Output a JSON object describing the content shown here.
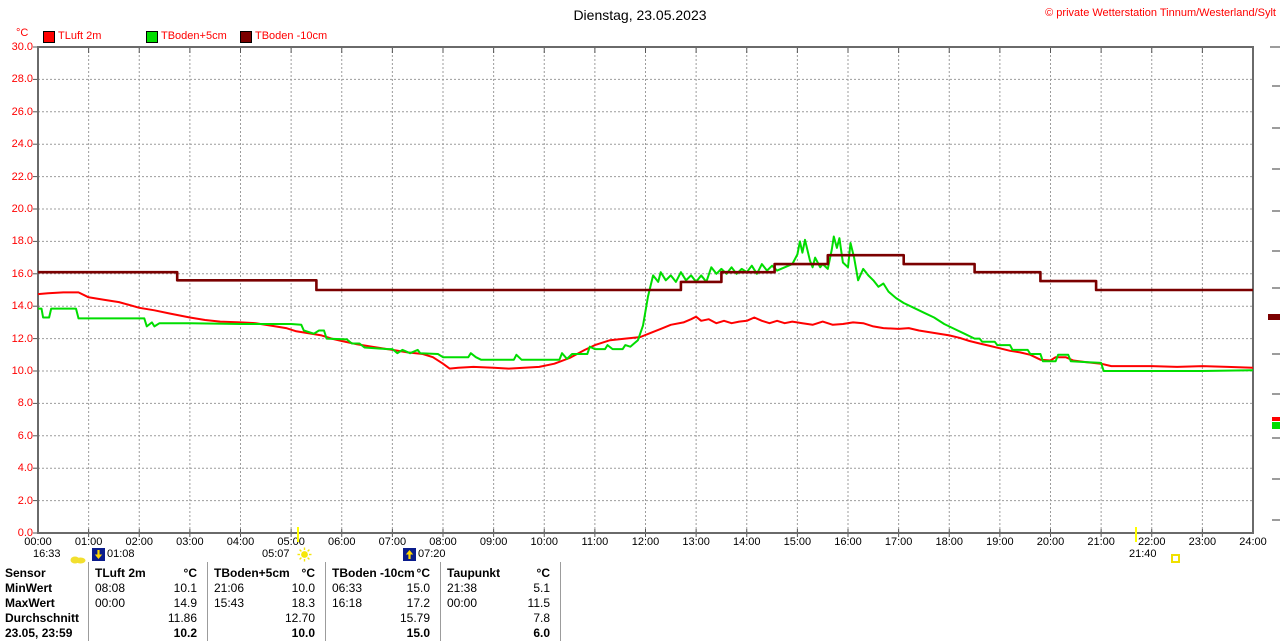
{
  "header": {
    "title": "Dienstag, 23.05.2023",
    "copyright": "© private Wetterstation Tinnum/Westerland/Sylt"
  },
  "chart_data": {
    "type": "line",
    "title": "Dienstag, 23.05.2023",
    "ylabel": "°C",
    "xlabel": "",
    "ylim": [
      0,
      30
    ],
    "ytick_step": 2,
    "grid": true,
    "legend_position": "top-left",
    "ytick_labels": [
      "0.0",
      "2.0",
      "4.0",
      "6.0",
      "8.0",
      "10.0",
      "12.0",
      "14.0",
      "16.0",
      "18.0",
      "20.0",
      "22.0",
      "24.0",
      "26.0",
      "28.0",
      "30.0"
    ],
    "xtick_labels": [
      "00:00",
      "01:00",
      "02:00",
      "03:00",
      "04:00",
      "05:00",
      "06:00",
      "07:00",
      "08:00",
      "09:00",
      "10:00",
      "11:00",
      "12:00",
      "13:00",
      "14:00",
      "15:00",
      "16:00",
      "17:00",
      "18:00",
      "19:00",
      "20:00",
      "21:00",
      "22:00",
      "23:00",
      "24:00"
    ],
    "series": [
      {
        "name": "TLuft 2m",
        "color": "#ff0000",
        "points": [
          [
            0,
            14.75
          ],
          [
            0.2,
            14.8
          ],
          [
            0.5,
            14.85
          ],
          [
            0.8,
            14.85
          ],
          [
            1.0,
            14.55
          ],
          [
            1.3,
            14.4
          ],
          [
            1.6,
            14.25
          ],
          [
            2.0,
            13.9
          ],
          [
            2.3,
            13.75
          ],
          [
            2.6,
            13.55
          ],
          [
            3.0,
            13.3
          ],
          [
            3.3,
            13.15
          ],
          [
            3.6,
            13.05
          ],
          [
            4.0,
            13.0
          ],
          [
            4.3,
            12.95
          ],
          [
            4.6,
            12.8
          ],
          [
            4.9,
            12.65
          ],
          [
            5.1,
            12.45
          ],
          [
            5.3,
            12.35
          ],
          [
            5.6,
            12.2
          ],
          [
            5.8,
            12.0
          ],
          [
            6.0,
            11.85
          ],
          [
            6.3,
            11.65
          ],
          [
            6.6,
            11.5
          ],
          [
            7.0,
            11.3
          ],
          [
            7.3,
            11.15
          ],
          [
            7.6,
            11.05
          ],
          [
            7.8,
            10.85
          ],
          [
            8.0,
            10.45
          ],
          [
            8.13,
            10.15
          ],
          [
            8.3,
            10.2
          ],
          [
            8.6,
            10.25
          ],
          [
            9.0,
            10.2
          ],
          [
            9.3,
            10.15
          ],
          [
            9.6,
            10.2
          ],
          [
            9.9,
            10.25
          ],
          [
            10.2,
            10.45
          ],
          [
            10.5,
            10.8
          ],
          [
            10.8,
            11.3
          ],
          [
            11.0,
            11.6
          ],
          [
            11.3,
            11.9
          ],
          [
            11.6,
            12.0
          ],
          [
            11.9,
            12.1
          ],
          [
            12.1,
            12.35
          ],
          [
            12.3,
            12.6
          ],
          [
            12.5,
            12.85
          ],
          [
            12.75,
            13.0
          ],
          [
            12.9,
            13.2
          ],
          [
            13.0,
            13.35
          ],
          [
            13.1,
            13.1
          ],
          [
            13.25,
            13.2
          ],
          [
            13.4,
            12.95
          ],
          [
            13.55,
            13.1
          ],
          [
            13.7,
            12.95
          ],
          [
            13.85,
            13.05
          ],
          [
            14.0,
            13.1
          ],
          [
            14.15,
            13.3
          ],
          [
            14.3,
            13.1
          ],
          [
            14.45,
            12.95
          ],
          [
            14.6,
            13.1
          ],
          [
            14.75,
            12.95
          ],
          [
            14.9,
            13.05
          ],
          [
            15.1,
            12.95
          ],
          [
            15.3,
            12.85
          ],
          [
            15.5,
            13.05
          ],
          [
            15.7,
            12.85
          ],
          [
            15.9,
            12.9
          ],
          [
            16.1,
            13.0
          ],
          [
            16.3,
            12.95
          ],
          [
            16.5,
            12.75
          ],
          [
            16.7,
            12.65
          ],
          [
            17.0,
            12.6
          ],
          [
            17.2,
            12.65
          ],
          [
            17.4,
            12.5
          ],
          [
            17.6,
            12.4
          ],
          [
            17.8,
            12.3
          ],
          [
            18.0,
            12.2
          ],
          [
            18.2,
            12.05
          ],
          [
            18.4,
            11.85
          ],
          [
            18.6,
            11.7
          ],
          [
            18.8,
            11.55
          ],
          [
            19.0,
            11.4
          ],
          [
            19.2,
            11.25
          ],
          [
            19.4,
            11.15
          ],
          [
            19.6,
            11.0
          ],
          [
            19.8,
            10.7
          ],
          [
            20.0,
            10.65
          ],
          [
            20.1,
            10.85
          ],
          [
            20.3,
            10.85
          ],
          [
            20.45,
            10.65
          ],
          [
            20.7,
            10.55
          ],
          [
            21.0,
            10.45
          ],
          [
            21.2,
            10.3
          ],
          [
            21.5,
            10.3
          ],
          [
            22.0,
            10.3
          ],
          [
            22.5,
            10.25
          ],
          [
            23.0,
            10.3
          ],
          [
            23.5,
            10.25
          ],
          [
            24,
            10.2
          ]
        ]
      },
      {
        "name": "TBoden+5cm",
        "color": "#00dd00",
        "points": [
          [
            0,
            13.85
          ],
          [
            0.07,
            13.85
          ],
          [
            0.1,
            13.3
          ],
          [
            0.22,
            13.3
          ],
          [
            0.26,
            13.85
          ],
          [
            0.75,
            13.85
          ],
          [
            0.8,
            13.25
          ],
          [
            2.1,
            13.25
          ],
          [
            2.15,
            12.75
          ],
          [
            2.25,
            13.0
          ],
          [
            2.3,
            12.75
          ],
          [
            2.4,
            12.95
          ],
          [
            3.0,
            12.95
          ],
          [
            4.0,
            12.9
          ],
          [
            5.0,
            12.9
          ],
          [
            5.2,
            12.85
          ],
          [
            5.25,
            12.5
          ],
          [
            5.45,
            12.3
          ],
          [
            5.55,
            12.5
          ],
          [
            5.65,
            12.5
          ],
          [
            5.7,
            12.0
          ],
          [
            6.1,
            11.95
          ],
          [
            6.2,
            11.7
          ],
          [
            6.35,
            11.7
          ],
          [
            6.45,
            11.45
          ],
          [
            6.9,
            11.35
          ],
          [
            7.0,
            11.35
          ],
          [
            7.1,
            11.1
          ],
          [
            7.2,
            11.3
          ],
          [
            7.35,
            11.1
          ],
          [
            7.5,
            11.3
          ],
          [
            7.55,
            11.1
          ],
          [
            7.9,
            11.05
          ],
          [
            8.0,
            10.85
          ],
          [
            8.5,
            10.85
          ],
          [
            8.55,
            11.1
          ],
          [
            8.65,
            10.85
          ],
          [
            8.75,
            10.7
          ],
          [
            9.4,
            10.7
          ],
          [
            9.45,
            11.0
          ],
          [
            9.55,
            10.7
          ],
          [
            10.3,
            10.7
          ],
          [
            10.35,
            11.1
          ],
          [
            10.45,
            10.75
          ],
          [
            10.55,
            11.05
          ],
          [
            10.85,
            11.05
          ],
          [
            10.9,
            11.5
          ],
          [
            11.0,
            11.35
          ],
          [
            11.2,
            11.35
          ],
          [
            11.25,
            11.6
          ],
          [
            11.35,
            11.35
          ],
          [
            11.55,
            11.35
          ],
          [
            11.6,
            11.6
          ],
          [
            11.7,
            11.5
          ],
          [
            11.85,
            11.9
          ],
          [
            11.95,
            12.8
          ],
          [
            12.05,
            14.6
          ],
          [
            12.15,
            15.9
          ],
          [
            12.25,
            15.5
          ],
          [
            12.3,
            16.1
          ],
          [
            12.4,
            15.6
          ],
          [
            12.5,
            15.9
          ],
          [
            12.6,
            15.5
          ],
          [
            12.7,
            16.1
          ],
          [
            12.8,
            15.6
          ],
          [
            12.9,
            15.9
          ],
          [
            13.0,
            15.5
          ],
          [
            13.1,
            15.9
          ],
          [
            13.2,
            15.5
          ],
          [
            13.3,
            16.4
          ],
          [
            13.4,
            16.0
          ],
          [
            13.5,
            16.3
          ],
          [
            13.6,
            16.0
          ],
          [
            13.7,
            16.4
          ],
          [
            13.8,
            16.0
          ],
          [
            13.9,
            16.3
          ],
          [
            14.0,
            16.1
          ],
          [
            14.1,
            16.5
          ],
          [
            14.2,
            16.0
          ],
          [
            14.3,
            16.6
          ],
          [
            14.4,
            16.2
          ],
          [
            14.5,
            16.5
          ],
          [
            14.6,
            16.2
          ],
          [
            14.75,
            16.4
          ],
          [
            14.9,
            16.6
          ],
          [
            15.0,
            17.2
          ],
          [
            15.05,
            18.0
          ],
          [
            15.1,
            17.3
          ],
          [
            15.15,
            18.1
          ],
          [
            15.25,
            16.8
          ],
          [
            15.3,
            16.4
          ],
          [
            15.35,
            17.0
          ],
          [
            15.45,
            16.4
          ],
          [
            15.5,
            16.6
          ],
          [
            15.6,
            16.3
          ],
          [
            15.68,
            17.5
          ],
          [
            15.72,
            18.3
          ],
          [
            15.78,
            17.6
          ],
          [
            15.83,
            18.2
          ],
          [
            15.9,
            16.7
          ],
          [
            16.0,
            16.4
          ],
          [
            16.05,
            17.9
          ],
          [
            16.12,
            17.0
          ],
          [
            16.2,
            15.6
          ],
          [
            16.3,
            16.3
          ],
          [
            16.4,
            15.9
          ],
          [
            16.5,
            15.6
          ],
          [
            16.6,
            15.2
          ],
          [
            16.7,
            15.4
          ],
          [
            16.8,
            14.9
          ],
          [
            16.95,
            14.5
          ],
          [
            17.1,
            14.2
          ],
          [
            17.3,
            13.9
          ],
          [
            17.5,
            13.6
          ],
          [
            17.7,
            13.3
          ],
          [
            17.9,
            12.9
          ],
          [
            18.1,
            12.6
          ],
          [
            18.3,
            12.3
          ],
          [
            18.5,
            12.0
          ],
          [
            18.6,
            12.0
          ],
          [
            18.65,
            11.8
          ],
          [
            18.9,
            11.8
          ],
          [
            18.95,
            11.6
          ],
          [
            19.2,
            11.6
          ],
          [
            19.25,
            11.3
          ],
          [
            19.55,
            11.3
          ],
          [
            19.6,
            11.05
          ],
          [
            19.8,
            11.05
          ],
          [
            19.85,
            10.6
          ],
          [
            20.1,
            10.6
          ],
          [
            20.15,
            11.0
          ],
          [
            20.35,
            11.0
          ],
          [
            20.4,
            10.6
          ],
          [
            20.7,
            10.55
          ],
          [
            21.0,
            10.5
          ],
          [
            21.05,
            10.0
          ],
          [
            22.0,
            10.0
          ],
          [
            23.0,
            10.0
          ],
          [
            24,
            10.05
          ]
        ]
      },
      {
        "name": "TBoden -10cm",
        "color": "#7b0000",
        "points": [
          [
            0,
            16.1
          ],
          [
            2.75,
            16.1
          ],
          [
            2.75,
            15.6
          ],
          [
            5.5,
            15.6
          ],
          [
            5.5,
            15.0
          ],
          [
            12.7,
            15.0
          ],
          [
            12.7,
            15.5
          ],
          [
            13.5,
            15.5
          ],
          [
            13.5,
            16.1
          ],
          [
            14.55,
            16.1
          ],
          [
            14.55,
            16.6
          ],
          [
            15.6,
            16.6
          ],
          [
            15.6,
            17.15
          ],
          [
            17.1,
            17.15
          ],
          [
            17.1,
            16.6
          ],
          [
            18.5,
            16.6
          ],
          [
            18.5,
            16.1
          ],
          [
            19.8,
            16.1
          ],
          [
            19.8,
            15.55
          ],
          [
            20.9,
            15.55
          ],
          [
            20.9,
            15.0
          ],
          [
            24,
            15.0
          ]
        ]
      }
    ],
    "day_markers": [
      {
        "time": "16:33",
        "icon": "moonrise-icon"
      },
      {
        "time": "01:08",
        "icon": "moonset-icon"
      },
      {
        "time": "05:07",
        "icon": "sunrise-icon"
      },
      {
        "time": "07:20",
        "icon": "moonrise2-icon"
      },
      {
        "time": "21:40",
        "icon": "sunset-icon"
      }
    ]
  },
  "table": {
    "corner_header": "Sensor",
    "unit": "°C",
    "row_labels": [
      "MinWert",
      "MaxWert",
      "Durchschnitt",
      "23.05, 23:59"
    ],
    "columns": [
      {
        "name": "TLuft 2m",
        "min_time": "08:08",
        "min": "10.1",
        "max_time": "00:00",
        "max": "14.9",
        "avg": "11.86",
        "last": "10.2"
      },
      {
        "name": "TBoden+5cm",
        "min_time": "21:06",
        "min": "10.0",
        "max_time": "15:43",
        "max": "18.3",
        "avg": "12.70",
        "last": "10.0"
      },
      {
        "name": "TBoden -10cm",
        "min_time": "06:33",
        "min": "15.0",
        "max_time": "16:18",
        "max": "17.2",
        "avg": "15.79",
        "last": "15.0"
      },
      {
        "name": "Taupunkt",
        "min_time": "21:38",
        "min": "5.1",
        "max_time": "00:00",
        "max": "11.5",
        "avg": "7.8",
        "last": "6.0"
      }
    ]
  }
}
